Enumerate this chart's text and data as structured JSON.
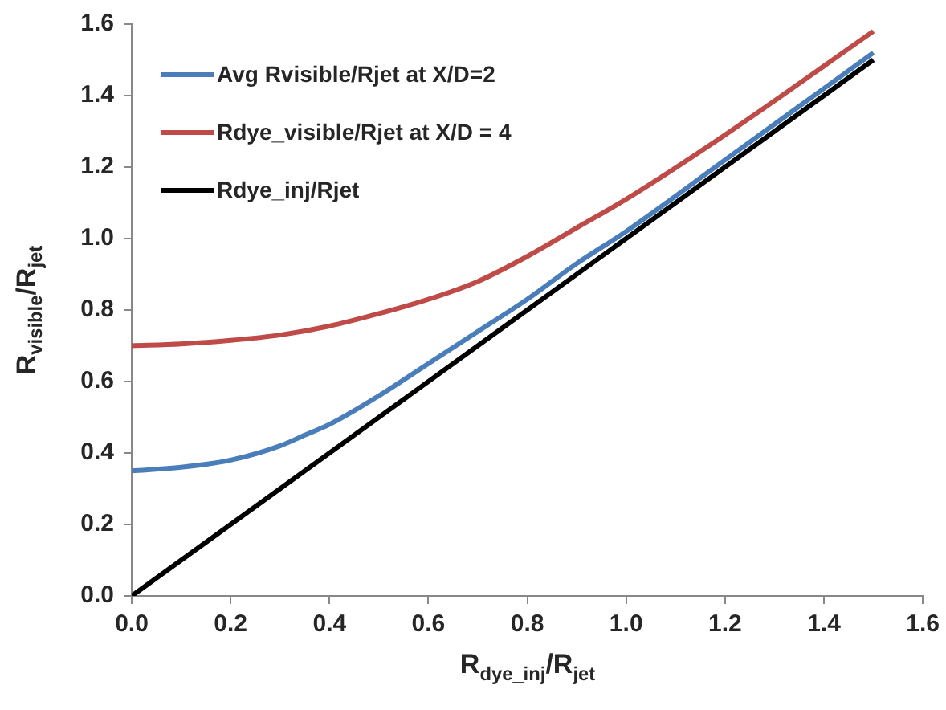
{
  "chart_data": {
    "type": "line",
    "xlabel": "R$_{dye_inj}$/R$_{jet}$",
    "ylabel": "R$_{visible}$/R$_{jet}$",
    "xlim": [
      0,
      1.6
    ],
    "xticks": [
      {
        "value": 0,
        "label": "0.0"
      },
      {
        "value": 0.2,
        "label": "0.2"
      },
      {
        "value": 0.4,
        "label": "0.4"
      },
      {
        "value": 0.6,
        "label": "0.6"
      },
      {
        "value": 0.8,
        "label": "0.8"
      },
      {
        "value": 1,
        "label": "1.0"
      },
      {
        "value": 1.2,
        "label": "1.2"
      },
      {
        "value": 1.4,
        "label": "1.4"
      },
      {
        "value": 1.6,
        "label": "1.6"
      }
    ],
    "ylim": [
      0,
      1.6
    ],
    "yticks": [
      {
        "value": 0,
        "label": "0.0"
      },
      {
        "value": 0.2,
        "label": "0.2"
      },
      {
        "value": 0.4,
        "label": "0.4"
      },
      {
        "value": 0.6,
        "label": "0.6"
      },
      {
        "value": 0.8,
        "label": "0.8"
      },
      {
        "value": 1,
        "label": "1.0"
      },
      {
        "value": 1.2,
        "label": "1.2"
      },
      {
        "value": 1.4,
        "label": "1.4"
      },
      {
        "value": 1.6,
        "label": "1.6"
      }
    ],
    "grid": false,
    "legend": "top left",
    "marker": "none",
    "line_style": "solid",
    "series": [
      {
        "name": "Avg Rvisible/Rjet at X/D=2",
        "color": "#4a7ebb",
        "x": [
          0,
          0.1,
          0.2,
          0.3,
          0.35,
          0.4,
          0.5,
          0.6,
          0.7,
          0.8,
          0.9,
          1.0,
          1.2,
          1.5
        ],
        "values": [
          0.35,
          0.36,
          0.38,
          0.42,
          0.45,
          0.48,
          0.56,
          0.65,
          0.74,
          0.83,
          0.93,
          1.02,
          1.22,
          1.52
        ]
      },
      {
        "name": "Rdye_visible/Rjet at X/D = 4",
        "color": "#be4b48",
        "x": [
          0,
          0.1,
          0.2,
          0.3,
          0.4,
          0.5,
          0.6,
          0.7,
          0.8,
          0.9,
          1.0,
          1.2,
          1.5
        ],
        "values": [
          0.7,
          0.705,
          0.715,
          0.73,
          0.755,
          0.79,
          0.83,
          0.88,
          0.95,
          1.03,
          1.11,
          1.29,
          1.58
        ]
      },
      {
        "name": "Rdye_inj/Rjet",
        "color": "#000000",
        "x": [
          0,
          1.5
        ],
        "values": [
          0,
          1.5
        ]
      }
    ]
  }
}
